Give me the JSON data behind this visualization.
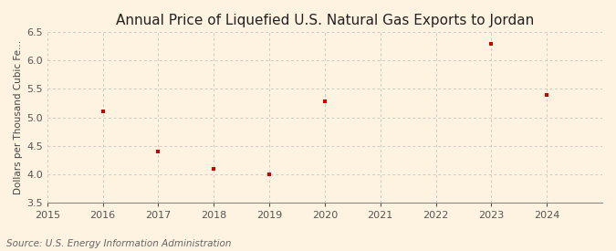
{
  "title": "Annual Price of Liquefied U.S. Natural Gas Exports to Jordan",
  "ylabel": "Dollars per Thousand Cubic Fe...",
  "source": "Source: U.S. Energy Information Administration",
  "x_data": [
    2016,
    2017,
    2018,
    2019,
    2020,
    2023,
    2024
  ],
  "y_data": [
    5.1,
    4.4,
    4.09,
    3.99,
    5.28,
    6.3,
    5.4
  ],
  "xlim": [
    2015,
    2025
  ],
  "ylim": [
    3.5,
    6.5
  ],
  "yticks": [
    3.5,
    4.0,
    4.5,
    5.0,
    5.5,
    6.0,
    6.5
  ],
  "xticks": [
    2015,
    2016,
    2017,
    2018,
    2019,
    2020,
    2021,
    2022,
    2023,
    2024
  ],
  "marker_color": "#cc0000",
  "marker": "s",
  "marker_size": 3,
  "background_color": "#fdf3e0",
  "grid_color": "#bbbbbb",
  "title_fontsize": 11,
  "label_fontsize": 7.5,
  "tick_fontsize": 8,
  "source_fontsize": 7.5
}
